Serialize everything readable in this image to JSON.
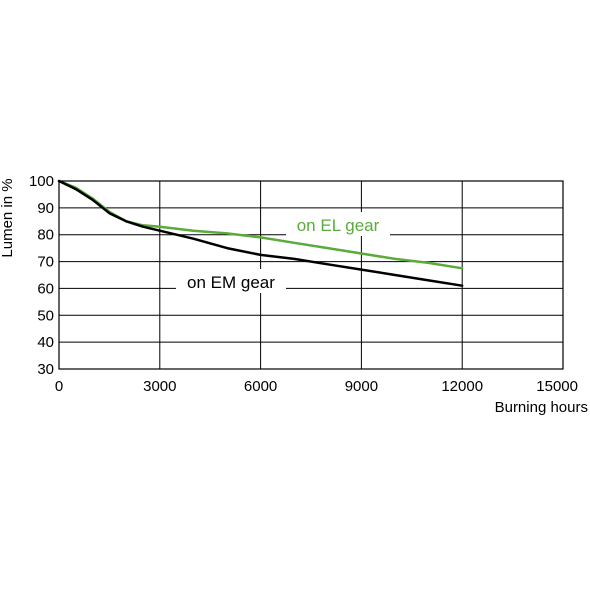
{
  "chart_data": {
    "type": "line",
    "xlabel": "Burning hours",
    "ylabel": "Lumen in %",
    "xlim": [
      0,
      15000
    ],
    "ylim": [
      30,
      100
    ],
    "x_ticks": [
      0,
      3000,
      6000,
      9000,
      12000,
      15000
    ],
    "y_ticks": [
      30,
      40,
      50,
      60,
      70,
      80,
      90,
      100
    ],
    "x_tick_labels": [
      "0",
      "3000",
      "6000",
      "9000",
      "12000",
      "15000"
    ],
    "y_tick_labels": [
      "30",
      "40",
      "50",
      "60",
      "70",
      "80",
      "90",
      "100"
    ],
    "grid": true,
    "series": [
      {
        "name": "on EM gear",
        "color": "#000000",
        "x": [
          0,
          500,
          1000,
          1500,
          2000,
          2500,
          3000,
          4000,
          5000,
          6000,
          7000,
          8000,
          9000,
          10000,
          11000,
          12000
        ],
        "y": [
          100,
          97,
          93,
          88,
          85,
          83,
          81.5,
          78.5,
          75,
          72.5,
          71,
          69,
          67,
          65,
          63,
          61
        ]
      },
      {
        "name": "on EL gear",
        "color": "#5aab3c",
        "x": [
          0,
          500,
          1000,
          1500,
          2000,
          2500,
          3000,
          4000,
          5000,
          6000,
          7000,
          8000,
          9000,
          10000,
          11000,
          12000
        ],
        "y": [
          100,
          97.5,
          93.5,
          88.5,
          85,
          83.5,
          83,
          81.5,
          80.5,
          79,
          77,
          75,
          73,
          71,
          69.5,
          67.5
        ]
      }
    ],
    "annotations": [
      {
        "text": "on EL gear",
        "series": "on EL gear"
      },
      {
        "text": "on EM gear",
        "series": "on EM gear"
      }
    ]
  }
}
